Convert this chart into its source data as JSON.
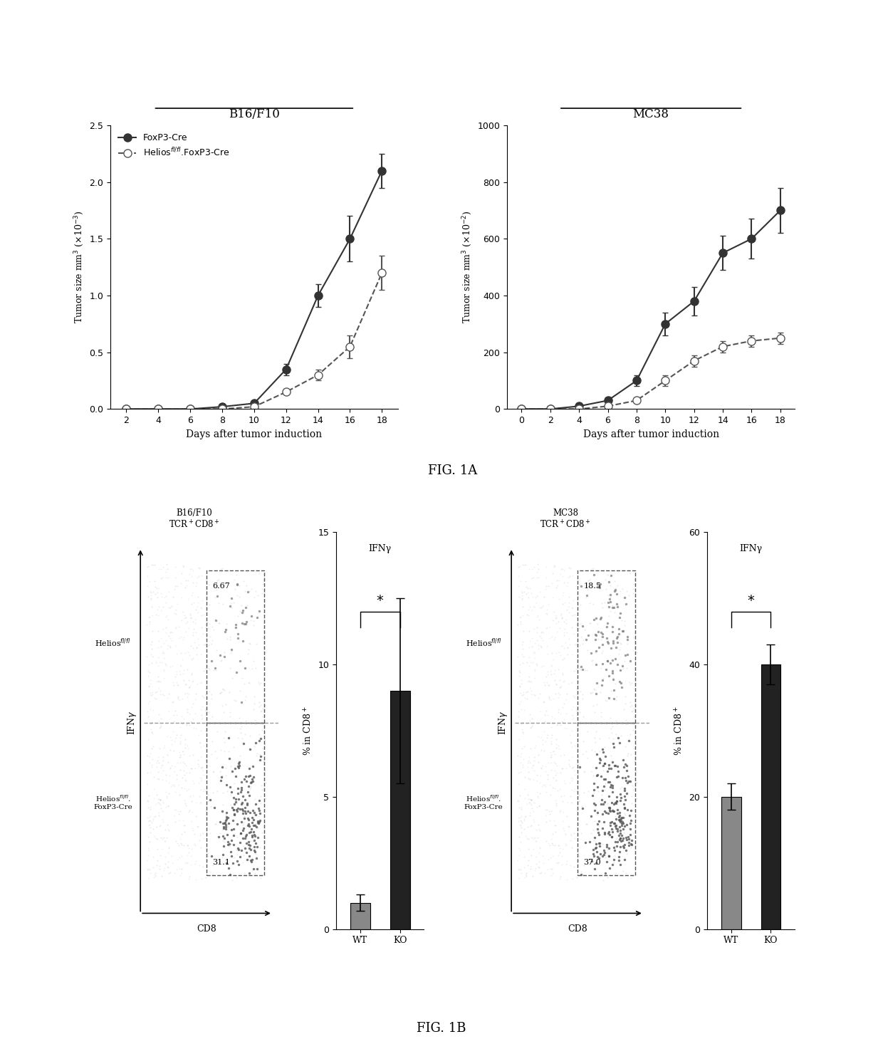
{
  "b16_days": [
    2,
    4,
    6,
    8,
    10,
    12,
    14,
    16,
    18
  ],
  "b16_foxp3_values": [
    0.0,
    0.0,
    0.0,
    0.02,
    0.05,
    0.35,
    1.0,
    1.5,
    2.1
  ],
  "b16_foxp3_err": [
    0.0,
    0.0,
    0.0,
    0.005,
    0.01,
    0.05,
    0.1,
    0.2,
    0.15
  ],
  "b16_helios_values": [
    0.0,
    0.0,
    0.0,
    0.0,
    0.02,
    0.15,
    0.3,
    0.55,
    1.2
  ],
  "b16_helios_err": [
    0.0,
    0.0,
    0.0,
    0.0,
    0.005,
    0.02,
    0.05,
    0.1,
    0.15
  ],
  "b16_ylim": [
    0,
    2.5
  ],
  "b16_yticks": [
    0,
    0.5,
    1.0,
    1.5,
    2.0,
    2.5
  ],
  "b16_xticks": [
    2,
    4,
    6,
    8,
    10,
    12,
    14,
    16,
    18
  ],
  "b16_title": "B16/F10",
  "b16_ylabel": "Tumor size mm$^3$ ($\\times$10$^{-3}$)",
  "mc38_days": [
    0,
    2,
    4,
    6,
    8,
    10,
    12,
    14,
    16,
    18
  ],
  "mc38_foxp3_values": [
    0,
    0,
    10,
    30,
    100,
    300,
    380,
    550,
    600,
    700
  ],
  "mc38_foxp3_err": [
    0,
    0,
    5,
    10,
    20,
    40,
    50,
    60,
    70,
    80
  ],
  "mc38_helios_values": [
    0,
    0,
    0,
    10,
    30,
    100,
    170,
    220,
    240,
    250
  ],
  "mc38_helios_err": [
    0,
    0,
    0,
    5,
    10,
    20,
    20,
    20,
    20,
    20
  ],
  "mc38_ylim": [
    0,
    1000
  ],
  "mc38_yticks": [
    0,
    200,
    400,
    600,
    800,
    1000
  ],
  "mc38_xticks": [
    0,
    2,
    4,
    6,
    8,
    10,
    12,
    14,
    16,
    18
  ],
  "mc38_title": "MC38",
  "mc38_ylabel": "Tumor size mm$^3$ ($\\times$10$^{-2}$)",
  "xlabel": "Days after tumor induction",
  "legend_foxp3": "FoxP3-Cre",
  "legend_helios": "Helios$^{fl/fl}$.FoxP3-Cre",
  "fig1a_label": "FIG. 1A",
  "fig1b_label": "FIG. 1B",
  "b16_helios_pct": "6.67",
  "b16_foxpcre_pct": "31.1",
  "mc38_helios_pct": "18.5",
  "mc38_foxpcre_pct": "37.0",
  "bar_wt_b16": 1.0,
  "bar_ko_b16": 9.0,
  "bar_wt_b16_err": 0.3,
  "bar_ko_b16_err": 3.5,
  "bar_ylim_b16": [
    0,
    15
  ],
  "bar_yticks_b16": [
    0,
    5,
    10,
    15
  ],
  "bar_ylabel_b16": "% in CD8$^+$",
  "bar_wt_mc38": 20.0,
  "bar_ko_mc38": 40.0,
  "bar_wt_mc38_err": 2.0,
  "bar_ko_mc38_err": 3.0,
  "bar_ylim_mc38": [
    0,
    60
  ],
  "bar_yticks_mc38": [
    0,
    20,
    40,
    60
  ],
  "bar_ylabel_mc38": "% in CD8$^+$",
  "ifng_label": "IFNγ",
  "stat_label": "*",
  "background_color": "#ffffff",
  "marker_size": 8,
  "line_width": 1.5
}
